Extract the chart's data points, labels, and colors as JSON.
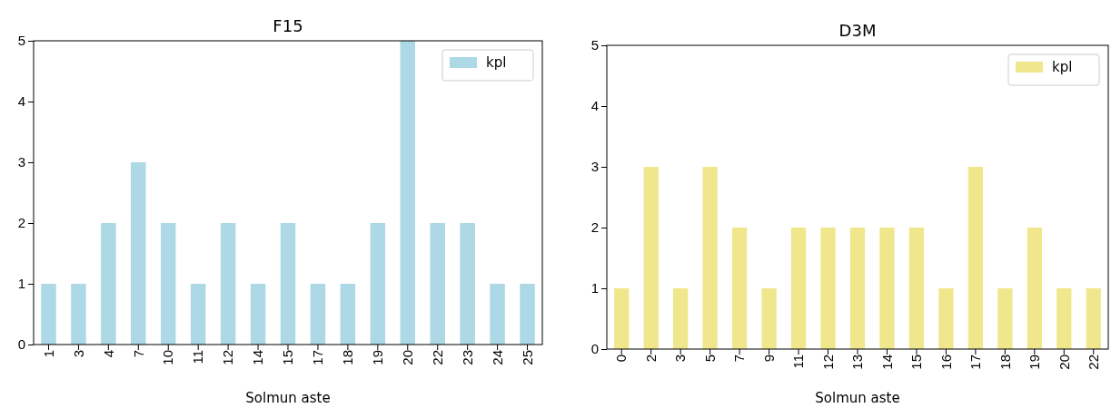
{
  "chart_data": [
    {
      "type": "bar",
      "title": "F15",
      "xlabel": "Solmun aste",
      "categories": [
        "1",
        "3",
        "4",
        "7",
        "10",
        "11",
        "12",
        "14",
        "15",
        "17",
        "18",
        "19",
        "20",
        "22",
        "23",
        "24",
        "25"
      ],
      "series": [
        {
          "name": "kpl",
          "color": "#add8e6",
          "values": [
            1,
            1,
            2,
            3,
            2,
            1,
            2,
            1,
            2,
            1,
            1,
            2,
            5,
            2,
            2,
            1,
            1
          ]
        }
      ],
      "ylim": [
        0,
        5
      ],
      "yticks": [
        0,
        1,
        2,
        3,
        4,
        5
      ],
      "legend": "top right",
      "grid": false
    },
    {
      "type": "bar",
      "title": "D3M",
      "xlabel": "Solmun aste",
      "categories": [
        "0",
        "2",
        "3",
        "5",
        "7",
        "9",
        "11",
        "12",
        "13",
        "14",
        "15",
        "16",
        "17",
        "18",
        "19",
        "20",
        "22"
      ],
      "series": [
        {
          "name": "kpl",
          "color": "#f0e68c",
          "values": [
            1,
            3,
            1,
            3,
            2,
            1,
            2,
            2,
            2,
            2,
            2,
            1,
            3,
            1,
            2,
            1,
            1
          ]
        }
      ],
      "ylim": [
        0,
        5
      ],
      "yticks": [
        0,
        1,
        2,
        3,
        4,
        5
      ],
      "legend": "top right",
      "grid": false
    }
  ]
}
